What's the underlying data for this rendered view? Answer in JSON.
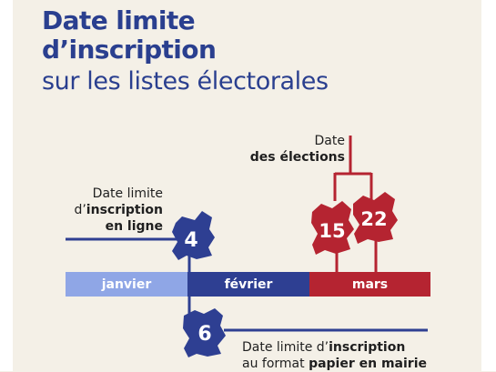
{
  "title": {
    "line1": "Date limite",
    "line2": "d’inscription",
    "line3": "sur les listes électorales"
  },
  "months": {
    "january": "janvier",
    "february": "février",
    "march": "mars"
  },
  "annotations": {
    "elections": {
      "line1": "Date",
      "line2_bold": "des élections"
    },
    "online": {
      "line1": "Date limite",
      "line2_pre": "d’",
      "line2_bold": "inscription",
      "line3_bold": "en ligne"
    },
    "paper": {
      "line1_pre": "Date limite d’",
      "line1_bold": "inscription",
      "line2_pre": "au format ",
      "line2_bold": "papier en mairie"
    }
  },
  "dates": {
    "online": "4",
    "paper": "6",
    "round1": "15",
    "round2": "22"
  },
  "colors": {
    "navy": "#2e3f92",
    "title_blue": "#2a3f8f",
    "light_blue": "#8fa6e6",
    "red": "#b52431",
    "background": "#f4f0e7"
  }
}
